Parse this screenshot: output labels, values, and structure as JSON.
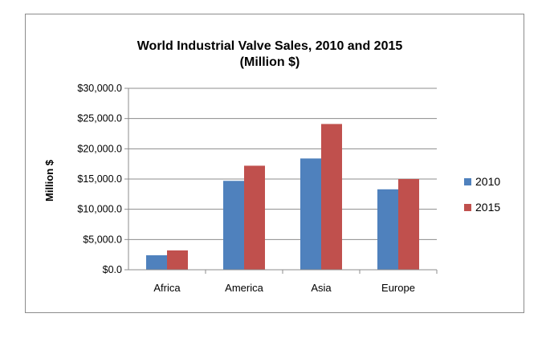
{
  "chart_data": {
    "type": "bar",
    "title_lines": [
      "World Industrial  Valve Sales, 2010 and 2015",
      "(Million $)"
    ],
    "xlabel": "",
    "ylabel": "Million $",
    "categories": [
      "Africa",
      "America",
      "Asia",
      "Europe"
    ],
    "series": [
      {
        "name": "2010",
        "color": "#4f81bd",
        "values": [
          2400,
          14700,
          18400,
          13300
        ]
      },
      {
        "name": "2015",
        "color": "#c0504d",
        "values": [
          3200,
          17200,
          24100,
          15000
        ]
      }
    ],
    "ylim": [
      0,
      30000
    ],
    "yticks": [
      0,
      5000,
      10000,
      15000,
      20000,
      25000,
      30000
    ],
    "ytick_labels": [
      "$0.0",
      "$5,000.0",
      "$10,000.0",
      "$15,000.0",
      "$20,000.0",
      "$25,000.0",
      "$30,000.0"
    ],
    "grid": true,
    "legend_position": "right"
  }
}
